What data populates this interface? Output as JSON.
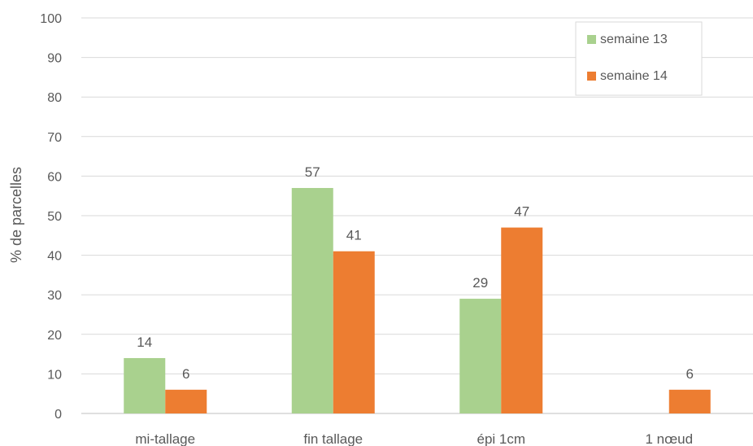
{
  "chart_data": {
    "type": "bar",
    "title": "",
    "xlabel": "",
    "ylabel": "% de parcelles",
    "ylim": [
      0,
      100
    ],
    "yticks": [
      0,
      10,
      20,
      30,
      40,
      50,
      60,
      70,
      80,
      90,
      100
    ],
    "grid": true,
    "legend_position": "top-right",
    "categories": [
      "mi-tallage",
      "fin tallage",
      "épi 1cm",
      "1 nœud"
    ],
    "series": [
      {
        "name": "semaine 13",
        "color": "#a9d18e",
        "values": [
          14,
          57,
          29,
          0
        ],
        "labels": [
          "14",
          "57",
          "29",
          ""
        ]
      },
      {
        "name": "semaine 14",
        "color": "#ed7d31",
        "values": [
          6,
          41,
          47,
          6
        ],
        "labels": [
          "6",
          "41",
          "47",
          "6"
        ]
      }
    ]
  }
}
